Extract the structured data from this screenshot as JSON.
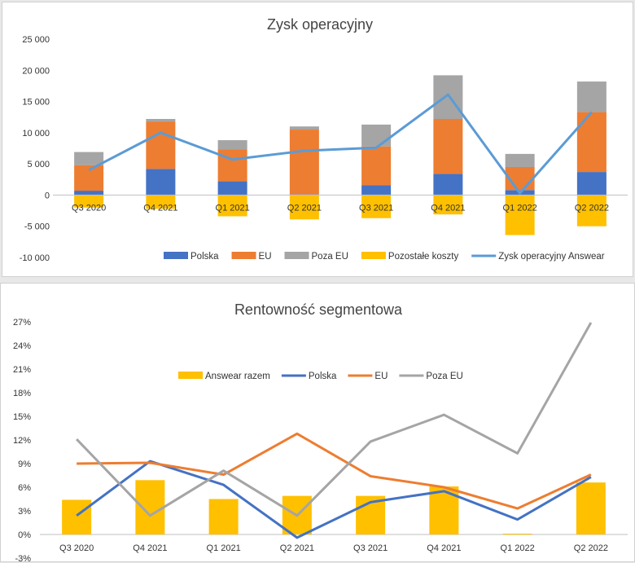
{
  "chart_data": [
    {
      "type": "bar",
      "title": "Zysk operacyjny",
      "categories": [
        "Q3 2020",
        "Q4 2021",
        "Q1 2021",
        "Q2 2021",
        "Q3 2021",
        "Q4 2021",
        "Q1 2022",
        "Q2 2022"
      ],
      "ylim": [
        -10000,
        25000
      ],
      "yticks": [
        -10000,
        -5000,
        0,
        5000,
        10000,
        15000,
        20000,
        25000
      ],
      "ytick_labels": [
        "-10 000",
        "-5 000",
        "0",
        "5 000",
        "10 000",
        "15 000",
        "20 000",
        "25 000"
      ],
      "stacked": true,
      "legend_position": "bottom-right",
      "series": [
        {
          "name": "Polska",
          "kind": "bar",
          "color": "#4472C4",
          "values": [
            700,
            4200,
            2200,
            100,
            1600,
            3400,
            800,
            3700
          ]
        },
        {
          "name": "EU",
          "kind": "bar",
          "color": "#ED7D31",
          "values": [
            4100,
            7600,
            5100,
            10400,
            6200,
            8800,
            3700,
            9600
          ]
        },
        {
          "name": "Poza EU",
          "kind": "bar",
          "color": "#A5A5A5",
          "values": [
            2100,
            400,
            1500,
            500,
            3500,
            7000,
            2100,
            4900
          ]
        },
        {
          "name": "Pozostałe koszty",
          "kind": "bar",
          "color": "#FFC000",
          "values": [
            -2000,
            -2200,
            -3400,
            -3900,
            -3700,
            -3100,
            -6400,
            -5000
          ]
        },
        {
          "name": "Zysk operacyjny Answear",
          "kind": "line",
          "color": "#5B9BD5",
          "values": [
            4000,
            10000,
            5700,
            7100,
            7600,
            16100,
            300,
            13300
          ]
        }
      ]
    },
    {
      "type": "bar",
      "title": "Rentowność segmentowa",
      "categories": [
        "Q3 2020",
        "Q4 2021",
        "Q1 2021",
        "Q2 2021",
        "Q3 2021",
        "Q4 2021",
        "Q1 2022",
        "Q2 2022"
      ],
      "ylim": [
        -3,
        27
      ],
      "yticks": [
        -3,
        0,
        3,
        6,
        9,
        12,
        15,
        18,
        21,
        24,
        27
      ],
      "ytick_labels": [
        "-3%",
        "0%",
        "3%",
        "6%",
        "9%",
        "12%",
        "15%",
        "18%",
        "21%",
        "24%",
        "27%"
      ],
      "legend_position": "top-center",
      "series": [
        {
          "name": "Answear razem",
          "kind": "bar",
          "color": "#FFC000",
          "values": [
            4.4,
            6.9,
            4.5,
            4.9,
            4.9,
            6.1,
            0.1,
            6.6
          ]
        },
        {
          "name": "Polska",
          "kind": "line",
          "color": "#4472C4",
          "values": [
            2.4,
            9.3,
            6.3,
            -0.4,
            4.1,
            5.5,
            1.9,
            7.3
          ]
        },
        {
          "name": "EU",
          "kind": "line",
          "color": "#ED7D31",
          "values": [
            9.0,
            9.1,
            7.6,
            12.8,
            7.4,
            6.0,
            3.3,
            7.6
          ]
        },
        {
          "name": "Poza EU",
          "kind": "line",
          "color": "#A5A5A5",
          "values": [
            12.1,
            2.4,
            8.1,
            2.4,
            11.8,
            15.2,
            10.3,
            26.9
          ]
        }
      ]
    }
  ]
}
